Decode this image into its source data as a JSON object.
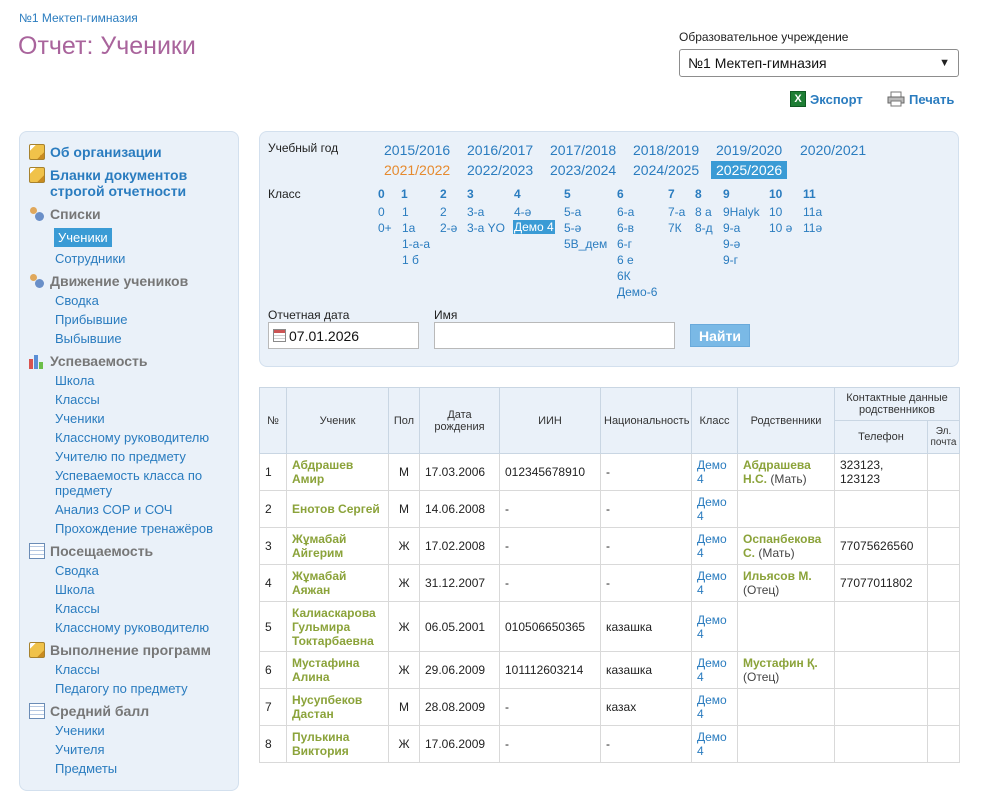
{
  "header": {
    "breadcrumb": "№1 Мектеп-гимназия",
    "title": "Отчет: Ученики",
    "org_label": "Образовательное учреждение",
    "org_selected": "№1 Мектеп-гимназия",
    "export_label": "Экспорт",
    "print_label": "Печать"
  },
  "sidebar": {
    "org_info": "Об организации",
    "blanks": "Бланки документов строгой отчетности",
    "lists": {
      "title": "Списки",
      "items": [
        "Ученики",
        "Сотрудники"
      ]
    },
    "movement": {
      "title": "Движение учеников",
      "items": [
        "Сводка",
        "Прибывшие",
        "Выбывшие"
      ]
    },
    "performance": {
      "title": "Успеваемость",
      "items": [
        "Школа",
        "Классы",
        "Ученики",
        "Классному руководителю",
        "Учителю по предмету",
        "Успеваемость класса по предмету",
        "Анализ СОР и СОЧ",
        "Прохождение тренажёров"
      ]
    },
    "attendance": {
      "title": "Посещаемость",
      "items": [
        "Сводка",
        "Школа",
        "Классы",
        "Классному руководителю"
      ]
    },
    "programs": {
      "title": "Выполнение программ",
      "items": [
        "Классы",
        "Педагогу по предмету"
      ]
    },
    "avg": {
      "title": "Средний балл",
      "items": [
        "Ученики",
        "Учителя",
        "Предметы"
      ]
    }
  },
  "filters": {
    "year_label": "Учебный год",
    "years": [
      "2015/2016",
      "2016/2017",
      "2017/2018",
      "2018/2019",
      "2019/2020",
      "2020/2021",
      "2021/2022",
      "2022/2023",
      "2023/2024",
      "2024/2025",
      "2025/2026"
    ],
    "class_label": "Класс",
    "class_groups": [
      {
        "head": "0",
        "items": [
          "0",
          "0+"
        ]
      },
      {
        "head": "1",
        "items": [
          "1",
          "1а",
          "1-а-а",
          "1 б"
        ]
      },
      {
        "head": "2",
        "items": [
          "2",
          "2-ә"
        ]
      },
      {
        "head": "3",
        "items": [
          "3-а",
          "3-а YO"
        ]
      },
      {
        "head": "4",
        "items": [
          "4-ә",
          "Демо 4"
        ]
      },
      {
        "head": "5",
        "items": [
          "5-а",
          "5-ә",
          "5В_дем"
        ]
      },
      {
        "head": "6",
        "items": [
          "6-а",
          "6-в",
          "6-г",
          "6 е",
          "6К",
          "Демо-6"
        ]
      },
      {
        "head": "7",
        "items": [
          "7-а",
          "7К"
        ]
      },
      {
        "head": "8",
        "items": [
          "8 а",
          "8-д"
        ]
      },
      {
        "head": "9",
        "items": [
          "9Halyk",
          "9-а",
          "9-ә",
          "9-г"
        ]
      },
      {
        "head": "10",
        "items": [
          "10",
          "10 ә"
        ]
      },
      {
        "head": "11",
        "items": [
          "11а",
          "11ә"
        ]
      }
    ],
    "date_label": "Отчетная дата",
    "date_value": "07.01.2026",
    "name_label": "Имя",
    "name_value": "",
    "find_label": "Найти"
  },
  "table": {
    "headers": {
      "num": "№",
      "student": "Ученик",
      "sex": "Пол",
      "birth": "Дата рождения",
      "iin": "ИИН",
      "nationality": "Национальность",
      "class": "Класс",
      "relatives": "Родственники",
      "contacts": "Контактные данные родственников",
      "phone": "Телефон",
      "email": "Эл. почта"
    },
    "rows": [
      {
        "num": "1",
        "name": "Абдрашев Амир",
        "sex": "М",
        "birth": "17.03.2006",
        "iin": "012345678910",
        "nat": "-",
        "cls": "Демо 4",
        "rel": "Абдрашева Н.С.",
        "rel_role": "(Мать)",
        "phone": "323123, 123123",
        "email": ""
      },
      {
        "num": "2",
        "name": "Енотов Сергей",
        "sex": "М",
        "birth": "14.06.2008",
        "iin": "-",
        "nat": "-",
        "cls": "Демо 4",
        "rel": "",
        "rel_role": "",
        "phone": "",
        "email": ""
      },
      {
        "num": "3",
        "name": "Жұмабай Айгерим",
        "sex": "Ж",
        "birth": "17.02.2008",
        "iin": "-",
        "nat": "-",
        "cls": "Демо 4",
        "rel": "Оспанбекова С.",
        "rel_role": "(Мать)",
        "phone": "77075626560",
        "email": ""
      },
      {
        "num": "4",
        "name": "Жұмабай Аяжан",
        "sex": "Ж",
        "birth": "31.12.2007",
        "iin": "-",
        "nat": "-",
        "cls": "Демо 4",
        "rel": "Ильясов М.",
        "rel_role": "(Отец)",
        "phone": "77077011802",
        "email": ""
      },
      {
        "num": "5",
        "name": "Калиаскарова Гульмира Токтарбаевна",
        "sex": "Ж",
        "birth": "06.05.2001",
        "iin": "010506650365",
        "nat": "казашка",
        "cls": "Демо 4",
        "rel": "",
        "rel_role": "",
        "phone": "",
        "email": ""
      },
      {
        "num": "6",
        "name": "Мустафина Алина",
        "sex": "Ж",
        "birth": "29.06.2009",
        "iin": "101112603214",
        "nat": "казашка",
        "cls": "Демо 4",
        "rel": "Мустафин Қ.",
        "rel_role": "(Отец)",
        "phone": "",
        "email": ""
      },
      {
        "num": "7",
        "name": "Нусупбеков Дастан",
        "sex": "М",
        "birth": "28.08.2009",
        "iin": "-",
        "nat": "казах",
        "cls": "Демо 4",
        "rel": "",
        "rel_role": "",
        "phone": "",
        "email": ""
      },
      {
        "num": "8",
        "name": "Пулькина Виктория",
        "sex": "Ж",
        "birth": "17.06.2009",
        "iin": "-",
        "nat": "-",
        "cls": "Демо 4",
        "rel": "",
        "rel_role": "",
        "phone": "",
        "email": ""
      }
    ]
  },
  "colors": {
    "accent": "#2a7cbf",
    "title": "#a9649c",
    "active_bg": "#3a9bd5",
    "name_green": "#8ba33a",
    "orange": "#e68a2e"
  }
}
